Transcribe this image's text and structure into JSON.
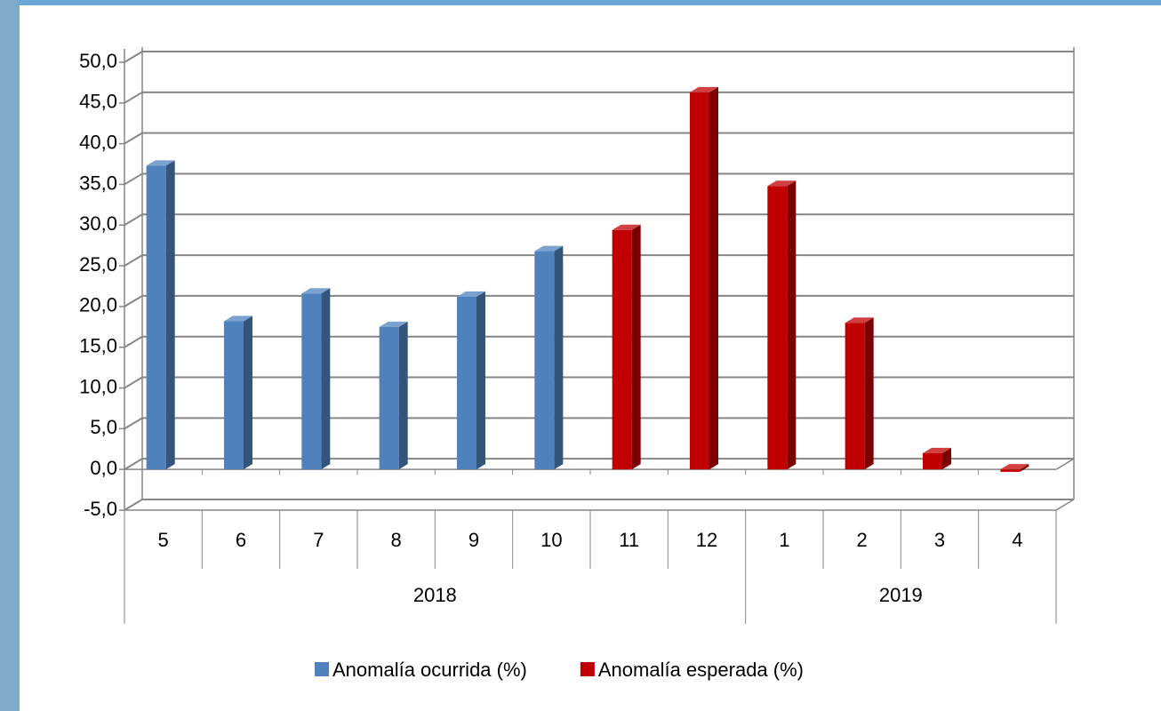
{
  "chart_data": {
    "type": "bar3d",
    "categories": [
      "5",
      "6",
      "7",
      "8",
      "9",
      "10",
      "11",
      "12",
      "1",
      "2",
      "3",
      "4"
    ],
    "category_groups": [
      {
        "label": "2018",
        "span": 8
      },
      {
        "label": "2019",
        "span": 4
      }
    ],
    "series": [
      {
        "name": "Anomalía ocurrida (%)",
        "color": "#4f81bd",
        "values": [
          37.3,
          18.2,
          21.6,
          17.5,
          21.2,
          26.8,
          null,
          null,
          null,
          null,
          null,
          null
        ]
      },
      {
        "name": "Anomalía esperada (%)",
        "color": "#c00000",
        "values": [
          null,
          null,
          null,
          null,
          null,
          null,
          29.4,
          46.3,
          34.8,
          18.0,
          2.0,
          -0.3
        ]
      }
    ],
    "ylim": [
      -5,
      50
    ],
    "yticks": [
      {
        "value": -5,
        "label": "-5,0"
      },
      {
        "value": 0,
        "label": "0,0"
      },
      {
        "value": 5,
        "label": "5,0"
      },
      {
        "value": 10,
        "label": "10,0"
      },
      {
        "value": 15,
        "label": "15,0"
      },
      {
        "value": 20,
        "label": "20,0"
      },
      {
        "value": 25,
        "label": "25,0"
      },
      {
        "value": 30,
        "label": "30,0"
      },
      {
        "value": 35,
        "label": "35,0"
      },
      {
        "value": 40,
        "label": "40,0"
      },
      {
        "value": 45,
        "label": "45,0"
      },
      {
        "value": 50,
        "label": "50,0"
      }
    ],
    "grid": true
  }
}
